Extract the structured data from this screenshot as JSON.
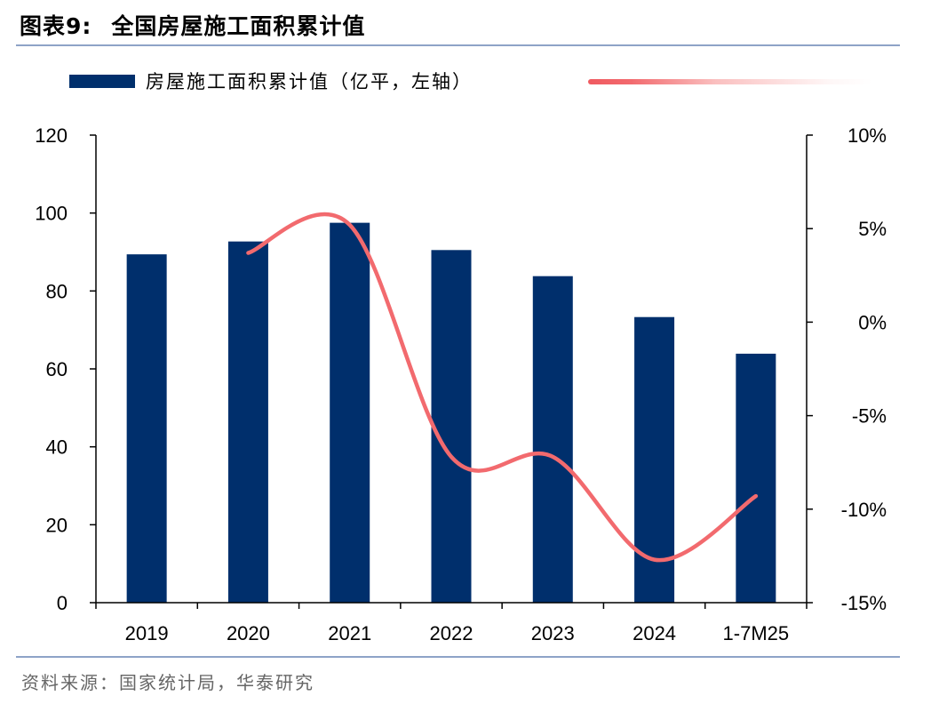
{
  "header": {
    "figure_no": "图表9:",
    "title": "全国房屋施工面积累计值"
  },
  "legend": {
    "bar_label": "房屋施工面积累计值（亿平，左轴）",
    "bar_color": "#002f6c",
    "line_color": "#f26a6e"
  },
  "footer": {
    "source": "资料来源：国家统计局，华泰研究"
  },
  "chart_data": {
    "type": "bar",
    "title": "全国房屋施工面积累计值",
    "categories": [
      "2019",
      "2020",
      "2021",
      "2022",
      "2023",
      "2024",
      "1-7M25"
    ],
    "series": [
      {
        "name": "房屋施工面积累计值（亿平，左轴）",
        "type": "bar",
        "axis": "left",
        "color": "#002f6c",
        "values": [
          89.4,
          92.7,
          97.5,
          90.5,
          83.8,
          73.3,
          63.9
        ]
      },
      {
        "type": "line",
        "axis": "right",
        "color": "#f26a6e",
        "smooth": true,
        "values": [
          null,
          3.7,
          5.2,
          -7.2,
          -7.2,
          -12.7,
          -9.3
        ]
      }
    ],
    "y_left": {
      "ylim": [
        0,
        120
      ],
      "ticks": [
        0,
        20,
        40,
        60,
        80,
        100,
        120
      ],
      "tick_labels": [
        "0",
        "20",
        "40",
        "60",
        "80",
        "100",
        "120"
      ]
    },
    "y_right": {
      "ylim": [
        -15,
        10
      ],
      "ticks": [
        -15,
        -10,
        -5,
        0,
        5,
        10
      ],
      "tick_labels": [
        "-15%",
        "-10%",
        "-5%",
        "0%",
        "5%",
        "10%"
      ]
    },
    "grid": false,
    "legend_position": "top"
  }
}
